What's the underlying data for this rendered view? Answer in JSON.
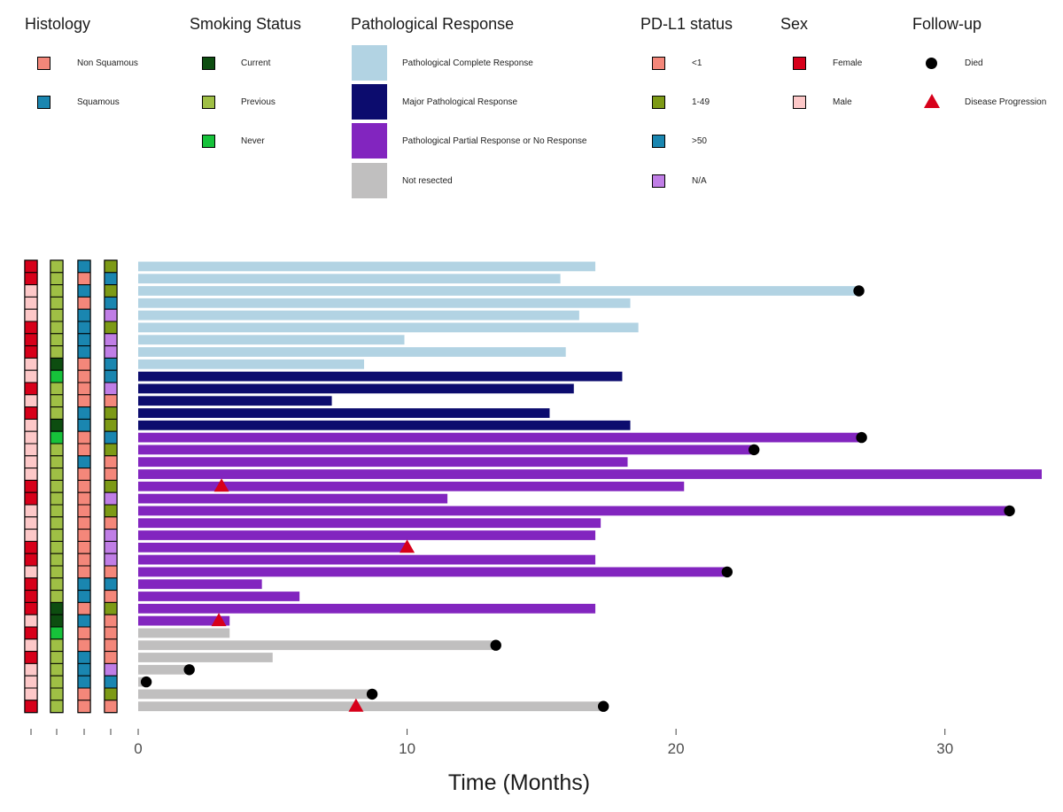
{
  "legend": {
    "histology": {
      "title": "Histology",
      "items": [
        {
          "label": "Non Squamous",
          "color": "#f4877a"
        },
        {
          "label": "Squamous",
          "color": "#1a86b0"
        }
      ]
    },
    "smoking": {
      "title": "Smoking Status",
      "items": [
        {
          "label": "Current",
          "color": "#0d4d10"
        },
        {
          "label": "Previous",
          "color": "#9fbf45"
        },
        {
          "label": "Never",
          "color": "#16c23a"
        }
      ]
    },
    "response": {
      "title": "Pathological Response",
      "items": [
        {
          "label": "Pathological Complete Response",
          "color": "#b2d3e3"
        },
        {
          "label": "Major Pathological Response",
          "color": "#0c0c6e"
        },
        {
          "label": "Pathological Partial Response or No Response",
          "color": "#8225bf"
        },
        {
          "label": "Not resected",
          "color": "#c0bfbf"
        }
      ]
    },
    "pdl1": {
      "title": "PD-L1 status",
      "items": [
        {
          "label": "<1",
          "color": "#f4877a"
        },
        {
          "label": "1-49",
          "color": "#7d9a16"
        },
        {
          "label": ">50",
          "color": "#1a86b0"
        },
        {
          "label": "N/A",
          "color": "#c07ee6"
        }
      ]
    },
    "sex": {
      "title": "Sex",
      "items": [
        {
          "label": "Female",
          "color": "#d7001a"
        },
        {
          "label": "Male",
          "color": "#fdc8c8"
        }
      ]
    },
    "followup": {
      "title": "Follow-up",
      "items": [
        {
          "label": "Died",
          "shape": "dot",
          "color": "#000000"
        },
        {
          "label": "Disease Progression",
          "shape": "triangle",
          "color": "#d7001a"
        }
      ]
    }
  },
  "chart_data": {
    "type": "bar",
    "orientation": "horizontal",
    "xlabel": "Time (Months)",
    "xlim": [
      0,
      33.6
    ],
    "xticks": [
      0,
      10,
      20,
      30
    ],
    "grid": false,
    "patients": [
      {
        "sex": "F",
        "smoking": "Previous",
        "histology": "Squamous",
        "pdl1": "1-49",
        "response": "pCR",
        "duration": 17.0,
        "died": false,
        "progression": null
      },
      {
        "sex": "F",
        "smoking": "Previous",
        "histology": "Non Squamous",
        "pdl1": ">50",
        "response": "pCR",
        "duration": 15.7,
        "died": false,
        "progression": null
      },
      {
        "sex": "M",
        "smoking": "Previous",
        "histology": "Squamous",
        "pdl1": "1-49",
        "response": "pCR",
        "duration": 26.8,
        "died": true,
        "progression": null
      },
      {
        "sex": "M",
        "smoking": "Previous",
        "histology": "Non Squamous",
        "pdl1": ">50",
        "response": "pCR",
        "duration": 18.3,
        "died": false,
        "progression": null
      },
      {
        "sex": "M",
        "smoking": "Previous",
        "histology": "Squamous",
        "pdl1": "N/A",
        "response": "pCR",
        "duration": 16.4,
        "died": false,
        "progression": null
      },
      {
        "sex": "F",
        "smoking": "Previous",
        "histology": "Squamous",
        "pdl1": "1-49",
        "response": "pCR",
        "duration": 18.6,
        "died": false,
        "progression": null
      },
      {
        "sex": "F",
        "smoking": "Previous",
        "histology": "Squamous",
        "pdl1": "N/A",
        "response": "pCR",
        "duration": 9.9,
        "died": false,
        "progression": null
      },
      {
        "sex": "F",
        "smoking": "Previous",
        "histology": "Squamous",
        "pdl1": "N/A",
        "response": "pCR",
        "duration": 15.9,
        "died": false,
        "progression": null
      },
      {
        "sex": "M",
        "smoking": "Current",
        "histology": "Non Squamous",
        "pdl1": ">50",
        "response": "pCR",
        "duration": 8.4,
        "died": false,
        "progression": null
      },
      {
        "sex": "M",
        "smoking": "Never",
        "histology": "Non Squamous",
        "pdl1": ">50",
        "response": "MPR",
        "duration": 18.0,
        "died": false,
        "progression": null
      },
      {
        "sex": "F",
        "smoking": "Previous",
        "histology": "Non Squamous",
        "pdl1": "N/A",
        "response": "MPR",
        "duration": 16.2,
        "died": false,
        "progression": null
      },
      {
        "sex": "M",
        "smoking": "Previous",
        "histology": "Non Squamous",
        "pdl1": "<1",
        "response": "MPR",
        "duration": 7.2,
        "died": false,
        "progression": null
      },
      {
        "sex": "F",
        "smoking": "Previous",
        "histology": "Squamous",
        "pdl1": "1-49",
        "response": "MPR",
        "duration": 15.3,
        "died": false,
        "progression": null
      },
      {
        "sex": "M",
        "smoking": "Current",
        "histology": "Squamous",
        "pdl1": "1-49",
        "response": "MPR",
        "duration": 18.3,
        "died": false,
        "progression": null
      },
      {
        "sex": "M",
        "smoking": "Never",
        "histology": "Non Squamous",
        "pdl1": ">50",
        "response": "Partial/None",
        "duration": 26.9,
        "died": true,
        "progression": null
      },
      {
        "sex": "M",
        "smoking": "Previous",
        "histology": "Non Squamous",
        "pdl1": "1-49",
        "response": "Partial/None",
        "duration": 22.9,
        "died": true,
        "progression": null
      },
      {
        "sex": "M",
        "smoking": "Previous",
        "histology": "Squamous",
        "pdl1": "<1",
        "response": "Partial/None",
        "duration": 18.2,
        "died": false,
        "progression": null
      },
      {
        "sex": "M",
        "smoking": "Previous",
        "histology": "Non Squamous",
        "pdl1": "<1",
        "response": "Partial/None",
        "duration": 33.6,
        "died": false,
        "progression": null
      },
      {
        "sex": "F",
        "smoking": "Previous",
        "histology": "Non Squamous",
        "pdl1": "1-49",
        "response": "Partial/None",
        "duration": 20.3,
        "died": false,
        "progression": 3.1
      },
      {
        "sex": "F",
        "smoking": "Previous",
        "histology": "Non Squamous",
        "pdl1": "N/A",
        "response": "Partial/None",
        "duration": 11.5,
        "died": false,
        "progression": null
      },
      {
        "sex": "M",
        "smoking": "Previous",
        "histology": "Non Squamous",
        "pdl1": "1-49",
        "response": "Partial/None",
        "duration": 32.4,
        "died": true,
        "progression": null
      },
      {
        "sex": "M",
        "smoking": "Previous",
        "histology": "Non Squamous",
        "pdl1": "<1",
        "response": "Partial/None",
        "duration": 17.2,
        "died": false,
        "progression": null
      },
      {
        "sex": "M",
        "smoking": "Previous",
        "histology": "Non Squamous",
        "pdl1": "N/A",
        "response": "Partial/None",
        "duration": 17.0,
        "died": false,
        "progression": null
      },
      {
        "sex": "F",
        "smoking": "Previous",
        "histology": "Non Squamous",
        "pdl1": "N/A",
        "response": "Partial/None",
        "duration": 10.0,
        "died": false,
        "progression": 10.0
      },
      {
        "sex": "F",
        "smoking": "Previous",
        "histology": "Non Squamous",
        "pdl1": "N/A",
        "response": "Partial/None",
        "duration": 17.0,
        "died": false,
        "progression": null
      },
      {
        "sex": "M",
        "smoking": "Previous",
        "histology": "Non Squamous",
        "pdl1": "<1",
        "response": "Partial/None",
        "duration": 21.9,
        "died": true,
        "progression": null
      },
      {
        "sex": "F",
        "smoking": "Previous",
        "histology": "Squamous",
        "pdl1": ">50",
        "response": "Partial/None",
        "duration": 4.6,
        "died": false,
        "progression": null
      },
      {
        "sex": "F",
        "smoking": "Previous",
        "histology": "Squamous",
        "pdl1": "<1",
        "response": "Partial/None",
        "duration": 6.0,
        "died": false,
        "progression": null
      },
      {
        "sex": "F",
        "smoking": "Current",
        "histology": "Non Squamous",
        "pdl1": "1-49",
        "response": "Partial/None",
        "duration": 17.0,
        "died": false,
        "progression": null
      },
      {
        "sex": "M",
        "smoking": "Current",
        "histology": "Squamous",
        "pdl1": "<1",
        "response": "Partial/None",
        "duration": 3.4,
        "died": false,
        "progression": 3.0
      },
      {
        "sex": "F",
        "smoking": "Never",
        "histology": "Non Squamous",
        "pdl1": "<1",
        "response": "Not resected",
        "duration": 3.4,
        "died": false,
        "progression": null
      },
      {
        "sex": "M",
        "smoking": "Previous",
        "histology": "Non Squamous",
        "pdl1": "<1",
        "response": "Not resected",
        "duration": 13.3,
        "died": true,
        "progression": null
      },
      {
        "sex": "F",
        "smoking": "Previous",
        "histology": "Squamous",
        "pdl1": "<1",
        "response": "Not resected",
        "duration": 5.0,
        "died": false,
        "progression": null
      },
      {
        "sex": "M",
        "smoking": "Previous",
        "histology": "Squamous",
        "pdl1": "N/A",
        "response": "Not resected",
        "duration": 1.9,
        "died": true,
        "progression": null
      },
      {
        "sex": "M",
        "smoking": "Previous",
        "histology": "Squamous",
        "pdl1": ">50",
        "response": "Not resected",
        "duration": 0.3,
        "died": true,
        "progression": null
      },
      {
        "sex": "M",
        "smoking": "Previous",
        "histology": "Non Squamous",
        "pdl1": "1-49",
        "response": "Not resected",
        "duration": 8.7,
        "died": true,
        "progression": null
      },
      {
        "sex": "F",
        "smoking": "Previous",
        "histology": "Non Squamous",
        "pdl1": "<1",
        "response": "Not resected",
        "duration": 17.3,
        "died": true,
        "progression": 8.1
      }
    ]
  }
}
